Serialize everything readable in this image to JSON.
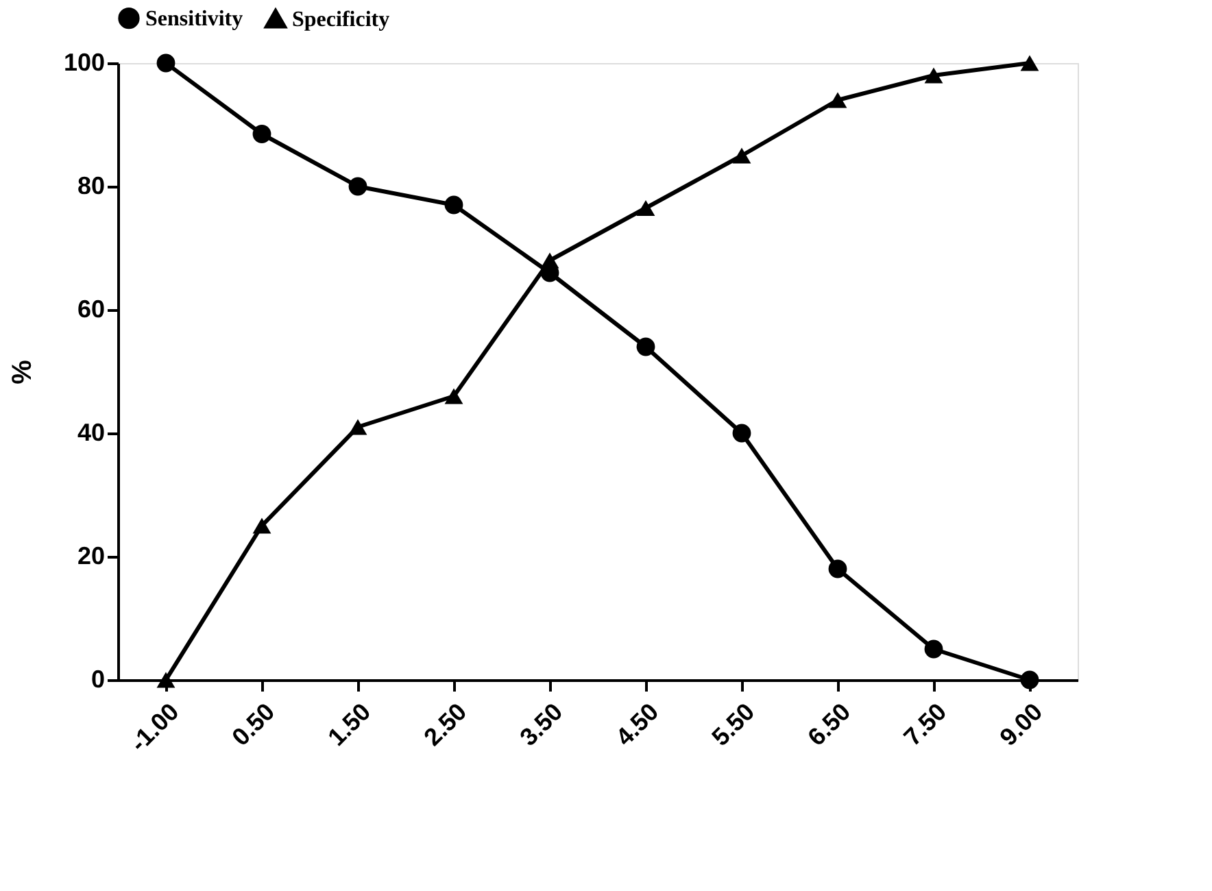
{
  "chart_data": {
    "type": "line",
    "ylabel": "%",
    "categories": [
      "-1.00",
      "0.50",
      "1.50",
      "2.50",
      "3.50",
      "4.50",
      "5.50",
      "6.50",
      "7.50",
      "9.00"
    ],
    "series": [
      {
        "name": "Sensitivity",
        "color": "#000000",
        "marker": "circle",
        "values": [
          100,
          88.5,
          80,
          77,
          66,
          54,
          40,
          18,
          5,
          0
        ]
      },
      {
        "name": "Specificity",
        "color": "#000000",
        "marker": "triangle",
        "values": [
          0,
          25,
          41,
          46,
          68,
          76.5,
          85,
          94,
          98,
          100
        ]
      }
    ],
    "ylim": [
      0,
      100
    ],
    "yticks": [
      0,
      20,
      40,
      60,
      80,
      100
    ],
    "grid": false,
    "legend": "top",
    "line_style": "solid"
  }
}
